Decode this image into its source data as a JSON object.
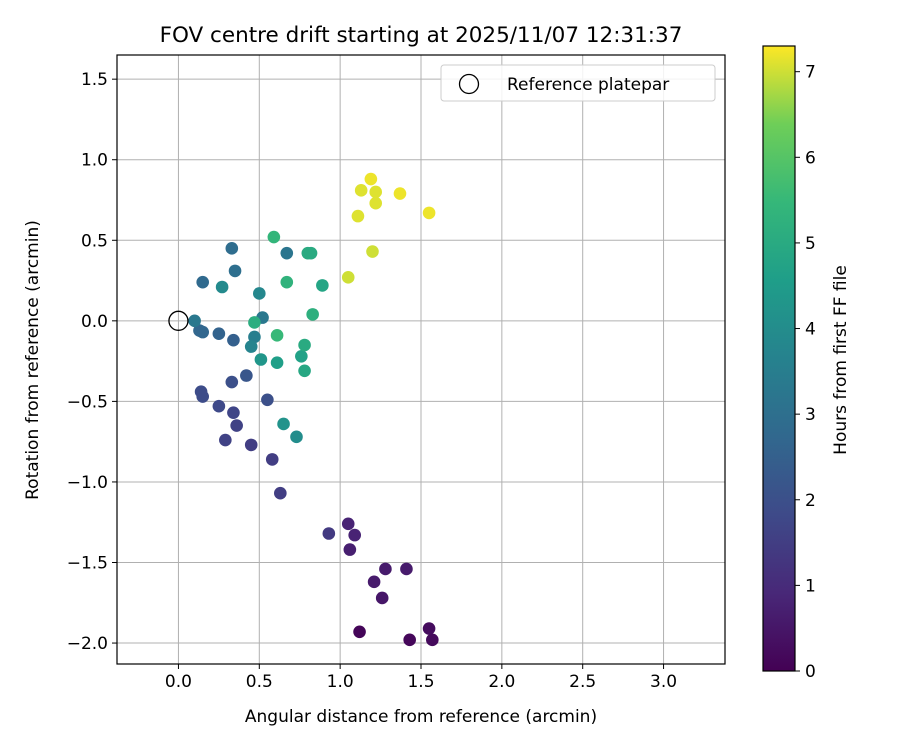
{
  "chart_data": {
    "type": "scatter",
    "title": "FOV centre drift starting at 2025/11/07 12:31:37",
    "xlabel": "Angular distance from reference (arcmin)",
    "ylabel": "Rotation from reference (arcmin)",
    "xlim": [
      -0.38,
      3.38
    ],
    "ylim": [
      -2.13,
      1.65
    ],
    "xticks": [
      0.0,
      0.5,
      1.0,
      1.5,
      2.0,
      2.5,
      3.0
    ],
    "xtick_labels": [
      "0.0",
      "0.5",
      "1.0",
      "1.5",
      "2.0",
      "2.5",
      "3.0"
    ],
    "yticks": [
      1.5,
      1.0,
      0.5,
      0.0,
      -0.5,
      -1.0,
      -1.5,
      -2.0
    ],
    "ytick_labels": [
      "1.5",
      "1.0",
      "0.5",
      "0.0",
      "−0.5",
      "−1.0",
      "−1.5",
      "−2.0"
    ],
    "grid": true,
    "legend": {
      "position": "top-right",
      "label": "Reference platepar"
    },
    "reference": {
      "x": 0.0,
      "y": 0.0
    },
    "colorbar": {
      "label": "Hours from first FF file",
      "range": [
        0,
        7.3
      ],
      "ticks": [
        0,
        1,
        2,
        3,
        4,
        5,
        6,
        7
      ],
      "tick_labels": [
        "0",
        "1",
        "2",
        "3",
        "4",
        "5",
        "6",
        "7"
      ],
      "colormap": "viridis"
    },
    "points": [
      {
        "x": 1.12,
        "y": -1.93,
        "t": 0.1
      },
      {
        "x": 1.43,
        "y": -1.98,
        "t": 0.15
      },
      {
        "x": 1.57,
        "y": -1.98,
        "t": 0.2
      },
      {
        "x": 1.55,
        "y": -1.91,
        "t": 0.25
      },
      {
        "x": 1.26,
        "y": -1.72,
        "t": 0.5
      },
      {
        "x": 1.21,
        "y": -1.62,
        "t": 0.6
      },
      {
        "x": 1.28,
        "y": -1.54,
        "t": 0.6
      },
      {
        "x": 1.41,
        "y": -1.54,
        "t": 0.6
      },
      {
        "x": 1.06,
        "y": -1.42,
        "t": 0.7
      },
      {
        "x": 1.09,
        "y": -1.33,
        "t": 0.8
      },
      {
        "x": 1.05,
        "y": -1.26,
        "t": 0.8
      },
      {
        "x": 0.93,
        "y": -1.32,
        "t": 1.4
      },
      {
        "x": 0.63,
        "y": -1.07,
        "t": 1.5
      },
      {
        "x": 0.58,
        "y": -0.86,
        "t": 1.5
      },
      {
        "x": 0.45,
        "y": -0.77,
        "t": 1.5
      },
      {
        "x": 0.29,
        "y": -0.74,
        "t": 1.6
      },
      {
        "x": 0.36,
        "y": -0.65,
        "t": 1.6
      },
      {
        "x": 0.34,
        "y": -0.57,
        "t": 1.7
      },
      {
        "x": 0.25,
        "y": -0.53,
        "t": 1.8
      },
      {
        "x": 0.15,
        "y": -0.47,
        "t": 1.9
      },
      {
        "x": 0.14,
        "y": -0.44,
        "t": 1.9
      },
      {
        "x": 0.55,
        "y": -0.49,
        "t": 2.0
      },
      {
        "x": 0.33,
        "y": -0.38,
        "t": 2.0
      },
      {
        "x": 0.42,
        "y": -0.34,
        "t": 2.2
      },
      {
        "x": 0.34,
        "y": -0.12,
        "t": 2.5
      },
      {
        "x": 0.25,
        "y": -0.08,
        "t": 2.6
      },
      {
        "x": 0.15,
        "y": -0.07,
        "t": 2.7
      },
      {
        "x": 0.13,
        "y": -0.06,
        "t": 2.7
      },
      {
        "x": 0.15,
        "y": 0.24,
        "t": 2.8
      },
      {
        "x": 0.33,
        "y": 0.45,
        "t": 2.9
      },
      {
        "x": 0.35,
        "y": 0.31,
        "t": 3.0
      },
      {
        "x": 0.67,
        "y": 0.42,
        "t": 3.2
      },
      {
        "x": 0.1,
        "y": 0.0,
        "t": 3.3
      },
      {
        "x": 0.52,
        "y": 0.02,
        "t": 3.3
      },
      {
        "x": 0.47,
        "y": -0.1,
        "t": 3.5
      },
      {
        "x": 0.45,
        "y": -0.16,
        "t": 3.7
      },
      {
        "x": 0.5,
        "y": 0.17,
        "t": 3.8
      },
      {
        "x": 0.27,
        "y": 0.21,
        "t": 3.9
      },
      {
        "x": 0.73,
        "y": -0.72,
        "t": 4.0
      },
      {
        "x": 0.65,
        "y": -0.64,
        "t": 4.2
      },
      {
        "x": 0.51,
        "y": -0.24,
        "t": 4.3
      },
      {
        "x": 0.61,
        "y": -0.26,
        "t": 4.6
      },
      {
        "x": 0.76,
        "y": -0.22,
        "t": 4.7
      },
      {
        "x": 0.89,
        "y": 0.22,
        "t": 4.8
      },
      {
        "x": 0.78,
        "y": -0.31,
        "t": 4.9
      },
      {
        "x": 0.78,
        "y": -0.15,
        "t": 5.0
      },
      {
        "x": 0.8,
        "y": 0.42,
        "t": 5.0
      },
      {
        "x": 0.82,
        "y": 0.42,
        "t": 5.0
      },
      {
        "x": 0.47,
        "y": -0.01,
        "t": 5.1
      },
      {
        "x": 0.83,
        "y": 0.04,
        "t": 5.2
      },
      {
        "x": 0.67,
        "y": 0.24,
        "t": 5.3
      },
      {
        "x": 0.59,
        "y": 0.52,
        "t": 5.4
      },
      {
        "x": 0.61,
        "y": -0.09,
        "t": 5.5
      },
      {
        "x": 1.05,
        "y": 0.27,
        "t": 7.0
      },
      {
        "x": 1.2,
        "y": 0.43,
        "t": 7.0
      },
      {
        "x": 1.11,
        "y": 0.65,
        "t": 7.1
      },
      {
        "x": 1.22,
        "y": 0.73,
        "t": 7.1
      },
      {
        "x": 1.13,
        "y": 0.81,
        "t": 7.1
      },
      {
        "x": 1.22,
        "y": 0.8,
        "t": 7.1
      },
      {
        "x": 1.19,
        "y": 0.88,
        "t": 7.2
      },
      {
        "x": 1.37,
        "y": 0.79,
        "t": 7.2
      },
      {
        "x": 1.55,
        "y": 0.67,
        "t": 7.2
      }
    ]
  }
}
